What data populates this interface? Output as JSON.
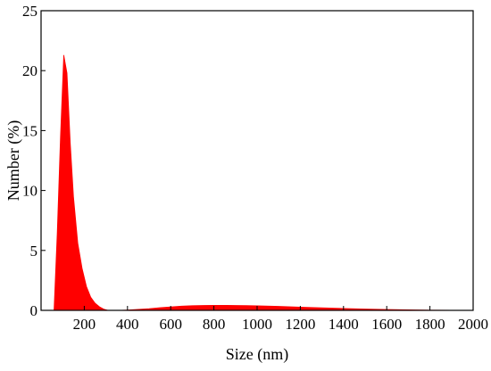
{
  "chart_data": {
    "type": "area",
    "xlabel": "Size (nm)",
    "ylabel": "Number (%)",
    "xlim": [
      0,
      2000
    ],
    "ylim": [
      0,
      25
    ],
    "x_ticks": [
      200,
      400,
      600,
      800,
      1000,
      1200,
      1400,
      1600,
      1800,
      2000
    ],
    "y_ticks": [
      0,
      5,
      10,
      15,
      20,
      25
    ],
    "grid": false,
    "legend": "none",
    "fill_color": "#ff0000",
    "series": [
      {
        "x": [
          60,
          75,
          90,
          105,
          120,
          135,
          150,
          170,
          190,
          210,
          230,
          250,
          270,
          290,
          310,
          330,
          360,
          400,
          450,
          500,
          550,
          600,
          650,
          700,
          750,
          800,
          850,
          900,
          950,
          1000,
          1100,
          1200,
          1300,
          1400,
          1500,
          1600,
          1700,
          1800,
          1900,
          2000
        ],
        "y": [
          0.0,
          6.5,
          14.5,
          21.3,
          19.8,
          14.0,
          9.5,
          5.6,
          3.5,
          2.0,
          1.1,
          0.6,
          0.3,
          0.1,
          0.0,
          0.0,
          0.0,
          0.03,
          0.08,
          0.14,
          0.22,
          0.29,
          0.35,
          0.39,
          0.41,
          0.42,
          0.42,
          0.41,
          0.4,
          0.38,
          0.33,
          0.27,
          0.21,
          0.16,
          0.11,
          0.07,
          0.04,
          0.02,
          0.01,
          0.0
        ]
      }
    ]
  }
}
